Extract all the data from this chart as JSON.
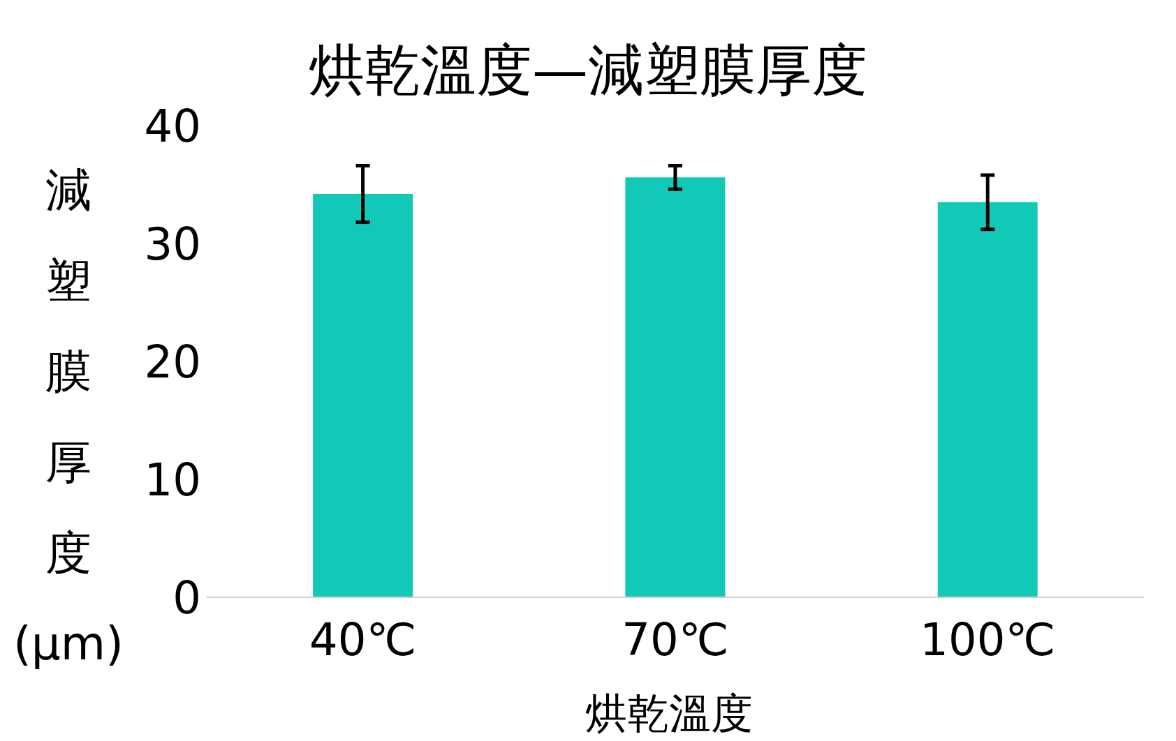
{
  "chart_data": {
    "type": "bar",
    "title": "烘乾溫度—減塑膜厚度",
    "xlabel": "烘乾溫度",
    "ylabel": "減塑膜厚度(μm)",
    "categories": [
      "40℃",
      "70℃",
      "100℃"
    ],
    "values": [
      34.2,
      35.6,
      33.5
    ],
    "errors": [
      2.4,
      1.0,
      2.3
    ],
    "color": "#12c9b7",
    "ylim": [
      0,
      40
    ],
    "yticks": [
      0,
      10,
      20,
      30,
      40
    ],
    "grid": false,
    "legend": false
  }
}
